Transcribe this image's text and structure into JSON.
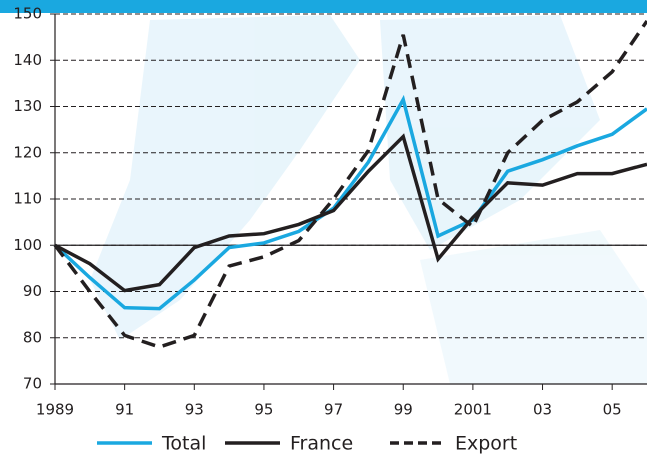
{
  "chart_data": {
    "type": "line",
    "x": [
      1989,
      1990,
      1991,
      1992,
      1993,
      1994,
      1995,
      1996,
      1997,
      1998,
      1999,
      2000,
      2001,
      2002,
      2003,
      2004,
      2005,
      2006
    ],
    "series": [
      {
        "name": "Total",
        "color": "#1aa8e0",
        "dashed": false,
        "values": [
          100,
          93,
          86.5,
          86.3,
          92.5,
          99.5,
          100.5,
          103,
          108,
          118,
          131.5,
          102,
          105.5,
          116,
          118.5,
          121.5,
          124,
          129.5
        ]
      },
      {
        "name": "France",
        "color": "#231f20",
        "dashed": false,
        "values": [
          100,
          96,
          90.2,
          91.5,
          99.5,
          102,
          102.5,
          104.5,
          107.5,
          116,
          123.5,
          97,
          106,
          113.5,
          113,
          115.5,
          115.5,
          117.5
        ]
      },
      {
        "name": "Export",
        "color": "#231f20",
        "dashed": true,
        "values": [
          100,
          90,
          80.5,
          78,
          80.5,
          95.5,
          97.5,
          101,
          110,
          120.5,
          145.5,
          110,
          104,
          120,
          127,
          131,
          137.5,
          148.5
        ]
      }
    ],
    "xlim": [
      1989,
      2006
    ],
    "xticks": [
      1989,
      {
        "value": 1991,
        "label": "91"
      },
      {
        "value": 1993,
        "label": "93"
      },
      {
        "value": 1995,
        "label": "95"
      },
      {
        "value": 1997,
        "label": "97"
      },
      {
        "value": 1999,
        "label": "99"
      },
      2001,
      {
        "value": 2003,
        "label": "03"
      },
      {
        "value": 2005,
        "label": "05"
      }
    ],
    "ylim": [
      70,
      150
    ],
    "yticks": [
      70,
      80,
      90,
      100,
      110,
      120,
      130,
      140,
      150
    ],
    "baseline": 100,
    "grid": true
  }
}
